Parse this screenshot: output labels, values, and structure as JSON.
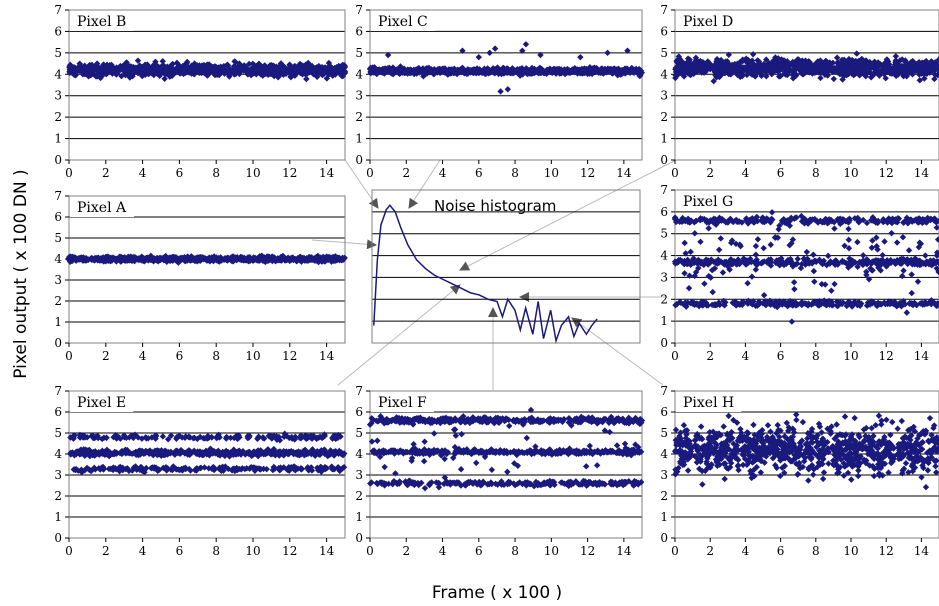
{
  "axis_labels": {
    "y": "Pixel output ( x 100 DN )",
    "x": "Frame ( x 100 )"
  },
  "colors": {
    "marker": "#1a1a7e",
    "grid": "#000000",
    "frame": "#808080",
    "arrow": "#555555"
  },
  "chart_data": [
    {
      "id": "pixel-b",
      "type": "scatter",
      "title": "Pixel B",
      "xlim": [
        0,
        15
      ],
      "ylim": [
        0,
        7
      ],
      "xticks": [
        "0",
        "2",
        "4",
        "6",
        "8",
        "10",
        "12",
        "14"
      ],
      "yticks": [
        "0",
        "1",
        "2",
        "3",
        "4",
        "5",
        "6",
        "7"
      ],
      "grid": true,
      "levels": [
        {
          "center": 4.2,
          "spread": 0.25,
          "weight": 1
        }
      ],
      "outliers": []
    },
    {
      "id": "pixel-c",
      "type": "scatter",
      "title": "Pixel C",
      "xlim": [
        0,
        15
      ],
      "ylim": [
        0,
        7
      ],
      "xticks": [
        "0",
        "2",
        "4",
        "6",
        "8",
        "10",
        "12",
        "14"
      ],
      "yticks": [
        "0",
        "1",
        "2",
        "3",
        "4",
        "5",
        "6",
        "7"
      ],
      "grid": true,
      "levels": [
        {
          "center": 4.15,
          "spread": 0.12,
          "weight": 1
        }
      ],
      "outliers": [
        [
          1.0,
          4.9
        ],
        [
          5.1,
          5.1
        ],
        [
          6.0,
          4.8
        ],
        [
          6.6,
          5.0
        ],
        [
          6.9,
          5.2
        ],
        [
          7.2,
          3.2
        ],
        [
          7.6,
          3.3
        ],
        [
          8.4,
          5.1
        ],
        [
          8.6,
          5.4
        ],
        [
          9.4,
          4.9
        ],
        [
          11.6,
          4.8
        ],
        [
          13.1,
          5.0
        ],
        [
          14.2,
          5.1
        ]
      ]
    },
    {
      "id": "pixel-d",
      "type": "scatter",
      "title": "Pixel D",
      "xlim": [
        0,
        15
      ],
      "ylim": [
        0,
        7
      ],
      "xticks": [
        "0",
        "2",
        "4",
        "6",
        "8",
        "10",
        "12",
        "14"
      ],
      "yticks": [
        "0",
        "1",
        "2",
        "3",
        "4",
        "5",
        "6",
        "7"
      ],
      "grid": true,
      "levels": [
        {
          "center": 4.3,
          "spread": 0.35,
          "weight": 1
        }
      ],
      "outliers": []
    },
    {
      "id": "pixel-a",
      "type": "scatter",
      "title": "Pixel A",
      "xlim": [
        0,
        15
      ],
      "ylim": [
        0,
        7
      ],
      "xticks": [
        "0",
        "2",
        "4",
        "6",
        "8",
        "10",
        "12",
        "14"
      ],
      "yticks": [
        "0",
        "1",
        "2",
        "3",
        "4",
        "5",
        "6",
        "7"
      ],
      "grid": true,
      "levels": [
        {
          "center": 4.0,
          "spread": 0.1,
          "weight": 1
        }
      ],
      "outliers": []
    },
    {
      "id": "noise-histogram",
      "type": "line",
      "title": "Noise histogram",
      "xlim": [
        0,
        15
      ],
      "ylim": [
        0,
        7
      ],
      "grid": true,
      "x": [
        0.1,
        0.3,
        0.5,
        0.8,
        1.0,
        1.3,
        1.6,
        2.0,
        2.5,
        3.0,
        3.5,
        4.0,
        4.5,
        5.0,
        5.5,
        6.0,
        6.5,
        7.0,
        7.3,
        7.6,
        8.0,
        8.3,
        8.6,
        9.0,
        9.3,
        9.6,
        10.0,
        10.3,
        10.6,
        11.0,
        11.3,
        11.6,
        12.0,
        12.3,
        12.6
      ],
      "y": [
        0.8,
        3.8,
        5.4,
        6.1,
        6.3,
        6.0,
        5.3,
        4.5,
        3.8,
        3.4,
        3.1,
        2.9,
        2.7,
        2.5,
        2.3,
        2.2,
        2.0,
        1.9,
        1.2,
        2.0,
        1.5,
        0.6,
        1.6,
        0.4,
        1.9,
        0.2,
        1.5,
        0.1,
        0.8,
        1.2,
        0.3,
        0.9,
        0.4,
        0.8,
        1.1
      ]
    },
    {
      "id": "pixel-g",
      "type": "scatter",
      "title": "Pixel G",
      "xlim": [
        0,
        15
      ],
      "ylim": [
        0,
        7
      ],
      "xticks": [
        "0",
        "2",
        "4",
        "6",
        "8",
        "10",
        "12",
        "14"
      ],
      "yticks": [
        "0",
        "1",
        "2",
        "3",
        "4",
        "5",
        "6",
        "7"
      ],
      "grid": true,
      "levels": [
        {
          "center": 5.6,
          "spread": 0.12,
          "weight": 1
        },
        {
          "center": 3.7,
          "spread": 0.12,
          "weight": 1
        },
        {
          "center": 1.8,
          "spread": 0.12,
          "weight": 1
        },
        {
          "center": 3.7,
          "spread": 1.7,
          "weight": 0.6
        }
      ],
      "outliers": []
    },
    {
      "id": "pixel-e",
      "type": "scatter",
      "title": "Pixel E",
      "xlim": [
        0,
        15
      ],
      "ylim": [
        0,
        7
      ],
      "xticks": [
        "0",
        "2",
        "4",
        "6",
        "8",
        "10",
        "12",
        "14"
      ],
      "yticks": [
        "0",
        "1",
        "2",
        "3",
        "4",
        "5",
        "6",
        "7"
      ],
      "grid": true,
      "levels": [
        {
          "center": 4.05,
          "spread": 0.12,
          "weight": 2
        },
        {
          "center": 4.8,
          "spread": 0.1,
          "weight": 0.6
        },
        {
          "center": 3.3,
          "spread": 0.1,
          "weight": 0.6
        }
      ],
      "outliers": []
    },
    {
      "id": "pixel-f",
      "type": "scatter",
      "title": "Pixel F",
      "xlim": [
        0,
        15
      ],
      "ylim": [
        0,
        7
      ],
      "xticks": [
        "0",
        "2",
        "4",
        "6",
        "8",
        "10",
        "12",
        "14"
      ],
      "yticks": [
        "0",
        "1",
        "2",
        "3",
        "4",
        "5",
        "6",
        "7"
      ],
      "grid": true,
      "levels": [
        {
          "center": 5.6,
          "spread": 0.12,
          "weight": 1
        },
        {
          "center": 4.1,
          "spread": 0.1,
          "weight": 1
        },
        {
          "center": 2.6,
          "spread": 0.1,
          "weight": 0.7
        },
        {
          "center": 4.1,
          "spread": 1.4,
          "weight": 0.15
        }
      ],
      "outliers": []
    },
    {
      "id": "pixel-h",
      "type": "scatter",
      "title": "Pixel H",
      "xlim": [
        0,
        15
      ],
      "ylim": [
        0,
        7
      ],
      "xticks": [
        "0",
        "2",
        "4",
        "6",
        "8",
        "10",
        "12",
        "14"
      ],
      "yticks": [
        "0",
        "1",
        "2",
        "3",
        "4",
        "5",
        "6",
        "7"
      ],
      "grid": true,
      "levels": [
        {
          "center": 4.2,
          "spread": 1.0,
          "weight": 1
        }
      ],
      "outliers": []
    }
  ]
}
